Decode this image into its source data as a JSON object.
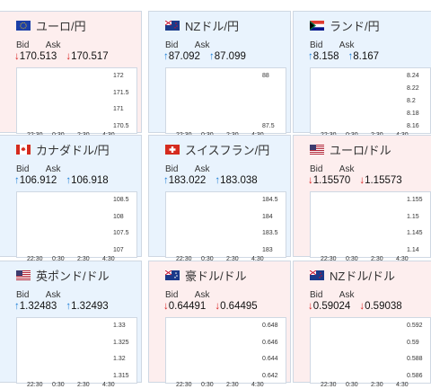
{
  "cards": [
    {
      "pair": "ユーロ/円",
      "flag": "eu",
      "bid": "170.513",
      "ask": "170.517",
      "dir": "down",
      "bid_label": "Bid",
      "ask_label": "Ask",
      "yticks": [
        "172",
        "171.5",
        "171",
        "170.5"
      ],
      "xticks": [
        "22:30",
        "0:30",
        "2:30",
        "4:30"
      ]
    },
    {
      "pair": "NZドル/円",
      "flag": "nz",
      "bid": "87.092",
      "ask": "87.099",
      "dir": "up",
      "bid_label": "Bid",
      "ask_label": "Ask",
      "yticks": [
        "88",
        "87.5"
      ],
      "xticks": [
        "22:30",
        "0:30",
        "2:30",
        "4:30"
      ]
    },
    {
      "pair": "ランド/円",
      "flag": "za",
      "bid": "8.158",
      "ask": "8.167",
      "dir": "up",
      "bid_label": "Bid",
      "ask_label": "Ask",
      "yticks": [
        "8.24",
        "8.22",
        "8.2",
        "8.18",
        "8.16"
      ],
      "xticks": [
        "22:30",
        "0:30",
        "2:30",
        "4:30"
      ]
    },
    {
      "pair": "カナダドル/円",
      "flag": "ca",
      "bid": "106.912",
      "ask": "106.918",
      "dir": "up",
      "bid_label": "Bid",
      "ask_label": "Ask",
      "yticks": [
        "108.5",
        "108",
        "107.5",
        "107"
      ],
      "xticks": [
        "22:30",
        "0:30",
        "2:30",
        "4:30"
      ]
    },
    {
      "pair": "スイスフラン/円",
      "flag": "ch",
      "bid": "183.022",
      "ask": "183.038",
      "dir": "up",
      "bid_label": "Bid",
      "ask_label": "Ask",
      "yticks": [
        "184.5",
        "184",
        "183.5",
        "183"
      ],
      "xticks": [
        "22:30",
        "0:30",
        "2:30",
        "4:30"
      ]
    },
    {
      "pair": "ユーロ/ドル",
      "flag": "us",
      "bid": "1.15570",
      "ask": "1.15573",
      "dir": "down",
      "bid_label": "Bid",
      "ask_label": "Ask",
      "yticks": [
        "1.155",
        "1.15",
        "1.145",
        "1.14"
      ],
      "xticks": [
        "22:30",
        "0:30",
        "2:30",
        "4:30"
      ]
    },
    {
      "pair": "英ポンド/ドル",
      "flag": "gb",
      "bid": "1.32483",
      "ask": "1.32493",
      "dir": "up",
      "bid_label": "Bid",
      "ask_label": "Ask",
      "yticks": [
        "1.33",
        "1.325",
        "1.32",
        "1.315"
      ],
      "xticks": [
        "22:30",
        "0:30",
        "2:30",
        "4:30"
      ]
    },
    {
      "pair": "豪ドル/ドル",
      "flag": "au",
      "bid": "0.64491",
      "ask": "0.64495",
      "dir": "down",
      "bid_label": "Bid",
      "ask_label": "Ask",
      "yticks": [
        "0.648",
        "0.646",
        "0.644",
        "0.642"
      ],
      "xticks": [
        "22:30",
        "0:30",
        "2:30",
        "4:30"
      ]
    },
    {
      "pair": "NZドル/ドル",
      "flag": "nz",
      "bid": "0.59024",
      "ask": "0.59038",
      "dir": "down",
      "bid_label": "Bid",
      "ask_label": "Ask",
      "yticks": [
        "0.592",
        "0.59",
        "0.588",
        "0.586"
      ],
      "xticks": [
        "22:30",
        "0:30",
        "2:30",
        "4:30"
      ]
    }
  ]
}
